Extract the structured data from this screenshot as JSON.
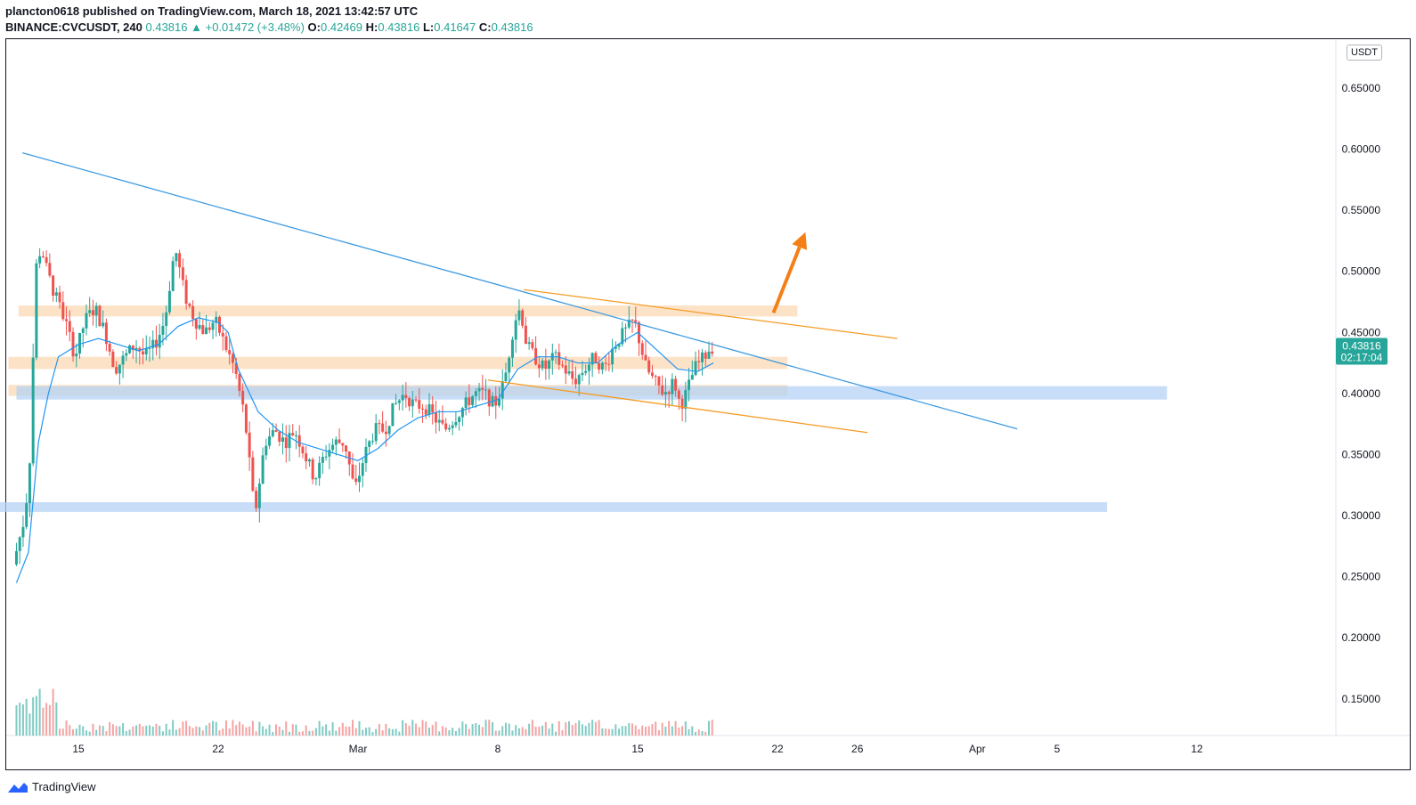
{
  "header": {
    "line1": "plancton0618 published on TradingView.com, March 18, 2021 13:42:57 UTC",
    "symbol": "BINANCE:CVCUSDT, 240",
    "last": "0.43816",
    "change": "▲ +0.01472 (+3.48%)",
    "o_label": "O:",
    "o": "0.42469",
    "h_label": "H:",
    "h": "0.43816",
    "l_label": "L:",
    "l": "0.41647",
    "c_label": "C:",
    "c": "0.43816"
  },
  "footer": {
    "brand": "TradingView"
  },
  "colors": {
    "up": "#26a69a",
    "down": "#ef5350",
    "ma": "#2196f3",
    "trend": "#3d9ae0",
    "channel": "#f59b23",
    "zone_orange": "#fbd7b0",
    "zone_blue": "#b6d3f5",
    "arrow": "#f57f17"
  },
  "chart_data": {
    "type": "candlestick",
    "unit": "USDT",
    "current_price": "0.43816",
    "countdown": "02:17:04",
    "ylim": [
      0.12,
      0.69
    ],
    "y_ticks": [
      "0.65000",
      "0.60000",
      "0.55000",
      "0.50000",
      "0.45000",
      "0.40000",
      "0.35000",
      "0.30000",
      "0.25000",
      "0.20000",
      "0.15000"
    ],
    "x_ticks": [
      {
        "label": "15",
        "day": 15
      },
      {
        "label": "22",
        "day": 22
      },
      {
        "label": "Mar",
        "day": 29
      },
      {
        "label": "8",
        "day": 36
      },
      {
        "label": "15",
        "day": 43
      },
      {
        "label": "22",
        "day": 50
      },
      {
        "label": "26",
        "day": 54
      },
      {
        "label": "Apr",
        "day": 60
      },
      {
        "label": "5",
        "day": 64
      },
      {
        "label": "12",
        "day": 71
      }
    ],
    "series_anchor_prices": [
      [
        11.9,
        0.26
      ],
      [
        12.5,
        0.3
      ],
      [
        12.8,
        0.36
      ],
      [
        13.0,
        0.5
      ],
      [
        13.3,
        0.52
      ],
      [
        13.6,
        0.5
      ],
      [
        14.0,
        0.48
      ],
      [
        14.5,
        0.46
      ],
      [
        15.0,
        0.43
      ],
      [
        15.5,
        0.46
      ],
      [
        16.0,
        0.47
      ],
      [
        16.5,
        0.45
      ],
      [
        17.0,
        0.42
      ],
      [
        17.5,
        0.43
      ],
      [
        18.0,
        0.44
      ],
      [
        18.5,
        0.43
      ],
      [
        19.0,
        0.44
      ],
      [
        19.5,
        0.46
      ],
      [
        20.0,
        0.52
      ],
      [
        20.5,
        0.48
      ],
      [
        21.0,
        0.46
      ],
      [
        21.5,
        0.45
      ],
      [
        22.0,
        0.46
      ],
      [
        22.5,
        0.44
      ],
      [
        23.0,
        0.42
      ],
      [
        23.5,
        0.38
      ],
      [
        24.0,
        0.3
      ],
      [
        24.5,
        0.36
      ],
      [
        25.0,
        0.37
      ],
      [
        25.5,
        0.36
      ],
      [
        26.0,
        0.37
      ],
      [
        26.5,
        0.35
      ],
      [
        27.0,
        0.33
      ],
      [
        27.5,
        0.35
      ],
      [
        28.0,
        0.36
      ],
      [
        28.5,
        0.36
      ],
      [
        29.0,
        0.32
      ],
      [
        29.5,
        0.35
      ],
      [
        30.0,
        0.37
      ],
      [
        30.5,
        0.37
      ],
      [
        31.0,
        0.39
      ],
      [
        31.5,
        0.4
      ],
      [
        32.0,
        0.39
      ],
      [
        32.5,
        0.39
      ],
      [
        33.0,
        0.38
      ],
      [
        33.5,
        0.37
      ],
      [
        34.0,
        0.38
      ],
      [
        34.5,
        0.39
      ],
      [
        35.0,
        0.4
      ],
      [
        35.5,
        0.4
      ],
      [
        36.0,
        0.39
      ],
      [
        36.5,
        0.41
      ],
      [
        37.0,
        0.46
      ],
      [
        37.3,
        0.47
      ],
      [
        37.6,
        0.44
      ],
      [
        38.0,
        0.43
      ],
      [
        38.5,
        0.42
      ],
      [
        39.0,
        0.43
      ],
      [
        39.5,
        0.42
      ],
      [
        40.0,
        0.41
      ],
      [
        40.5,
        0.42
      ],
      [
        41.0,
        0.43
      ],
      [
        41.5,
        0.42
      ],
      [
        42.0,
        0.44
      ],
      [
        42.5,
        0.45
      ],
      [
        43.0,
        0.46
      ],
      [
        43.3,
        0.44
      ],
      [
        43.6,
        0.42
      ],
      [
        44.0,
        0.41
      ],
      [
        44.5,
        0.4
      ],
      [
        45.0,
        0.41
      ],
      [
        45.3,
        0.39
      ],
      [
        45.6,
        0.4
      ],
      [
        46.0,
        0.42
      ],
      [
        46.5,
        0.43
      ],
      [
        46.8,
        0.438
      ]
    ],
    "moving_average": [
      [
        11.9,
        0.245
      ],
      [
        12.5,
        0.27
      ],
      [
        13.0,
        0.36
      ],
      [
        13.5,
        0.4
      ],
      [
        14.0,
        0.43
      ],
      [
        15.0,
        0.44
      ],
      [
        16.0,
        0.445
      ],
      [
        17.0,
        0.44
      ],
      [
        18.0,
        0.435
      ],
      [
        19.0,
        0.44
      ],
      [
        20.0,
        0.455
      ],
      [
        21.0,
        0.462
      ],
      [
        22.0,
        0.458
      ],
      [
        22.5,
        0.45
      ],
      [
        23.0,
        0.42
      ],
      [
        24.0,
        0.385
      ],
      [
        25.0,
        0.37
      ],
      [
        26.0,
        0.36
      ],
      [
        27.0,
        0.355
      ],
      [
        28.0,
        0.35
      ],
      [
        29.0,
        0.345
      ],
      [
        30.0,
        0.355
      ],
      [
        31.0,
        0.37
      ],
      [
        32.0,
        0.38
      ],
      [
        33.0,
        0.385
      ],
      [
        34.0,
        0.385
      ],
      [
        35.0,
        0.39
      ],
      [
        36.0,
        0.395
      ],
      [
        37.0,
        0.42
      ],
      [
        38.0,
        0.43
      ],
      [
        39.0,
        0.43
      ],
      [
        40.0,
        0.425
      ],
      [
        41.0,
        0.425
      ],
      [
        42.0,
        0.44
      ],
      [
        43.0,
        0.45
      ],
      [
        44.0,
        0.435
      ],
      [
        45.0,
        0.42
      ],
      [
        46.0,
        0.418
      ],
      [
        46.8,
        0.425
      ]
    ],
    "trendline": {
      "from": [
        12.2,
        0.597
      ],
      "to": [
        62.0,
        0.371
      ]
    },
    "channel_upper": {
      "from": [
        37.3,
        0.485
      ],
      "to": [
        56.0,
        0.445
      ]
    },
    "channel_lower": {
      "from": [
        35.5,
        0.411
      ],
      "to": [
        54.5,
        0.368
      ]
    },
    "zones": [
      {
        "color": "orange",
        "from": [
          12.0,
          0.463
        ],
        "to": [
          51.0,
          0.472
        ]
      },
      {
        "color": "orange",
        "from": [
          11.5,
          0.42
        ],
        "to": [
          50.5,
          0.43
        ]
      },
      {
        "color": "orange",
        "from": [
          11.5,
          0.398
        ],
        "to": [
          50.5,
          0.407
        ]
      },
      {
        "color": "blue",
        "from": [
          11.9,
          0.395
        ],
        "to": [
          69.5,
          0.406
        ]
      },
      {
        "color": "blue",
        "from": [
          10.6,
          0.303
        ],
        "to": [
          66.5,
          0.311
        ]
      }
    ],
    "arrow": {
      "from": [
        49.8,
        0.466
      ],
      "to": [
        51.4,
        0.532
      ]
    }
  }
}
